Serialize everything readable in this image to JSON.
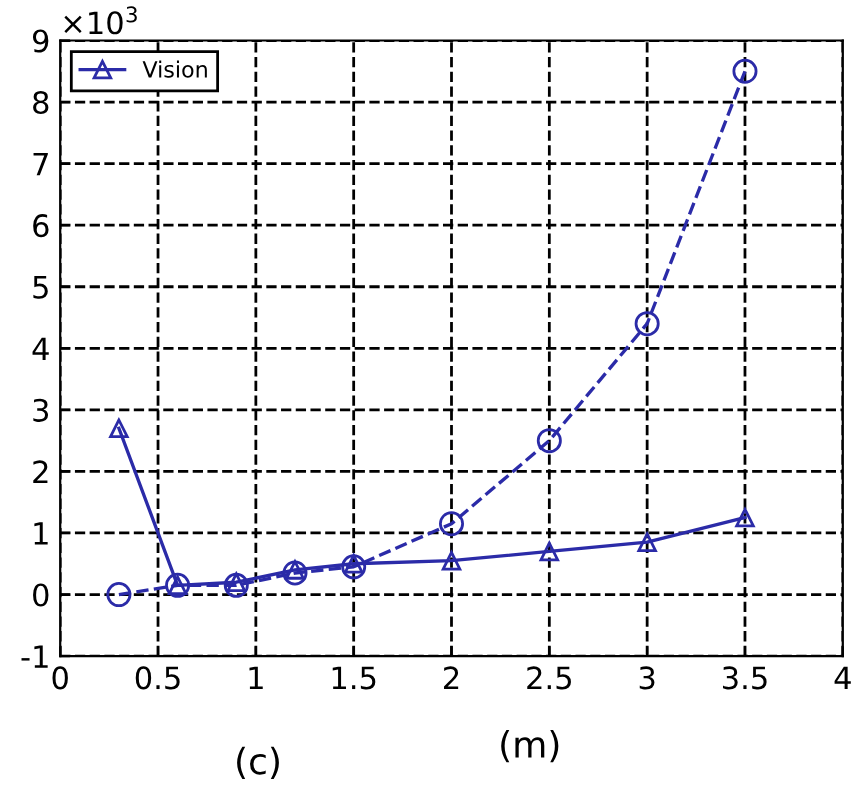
{
  "chart_data": {
    "type": "line",
    "xlabel": "(m)",
    "annotations": [
      "×10$^{3}$",
      "(c)"
    ],
    "series": [
      {
        "color": "#2b2ba8",
        "line_style": "dashed",
        "marker": "circle",
        "x": [
          0.3,
          0.6,
          0.9,
          1.2,
          1.5,
          2,
          2.5,
          3,
          3.5
        ],
        "values": [
          0,
          0.15,
          0.15,
          0.35,
          0.45,
          1.15,
          2.5,
          4.4,
          8.5
        ]
      },
      {
        "name": "Vision",
        "color": "#2b2ba8",
        "line_style": "solid",
        "marker": "triangle",
        "x": [
          0.3,
          0.6,
          0.9,
          1.2,
          1.5,
          2,
          2.5,
          3,
          3.5
        ],
        "values": [
          2.7,
          0.15,
          0.2,
          0.4,
          0.5,
          0.55,
          0.7,
          0.85,
          1.25
        ]
      }
    ],
    "xlim": [
      0,
      4
    ],
    "xticks": [
      0,
      0.5,
      1,
      1.5,
      2,
      2.5,
      3,
      3.5,
      4
    ],
    "ylim": [
      -1,
      9
    ],
    "yticks": [
      -1,
      0,
      1,
      2,
      3,
      4,
      5,
      6,
      7,
      8,
      9
    ],
    "grid": true,
    "legend": "top left"
  }
}
